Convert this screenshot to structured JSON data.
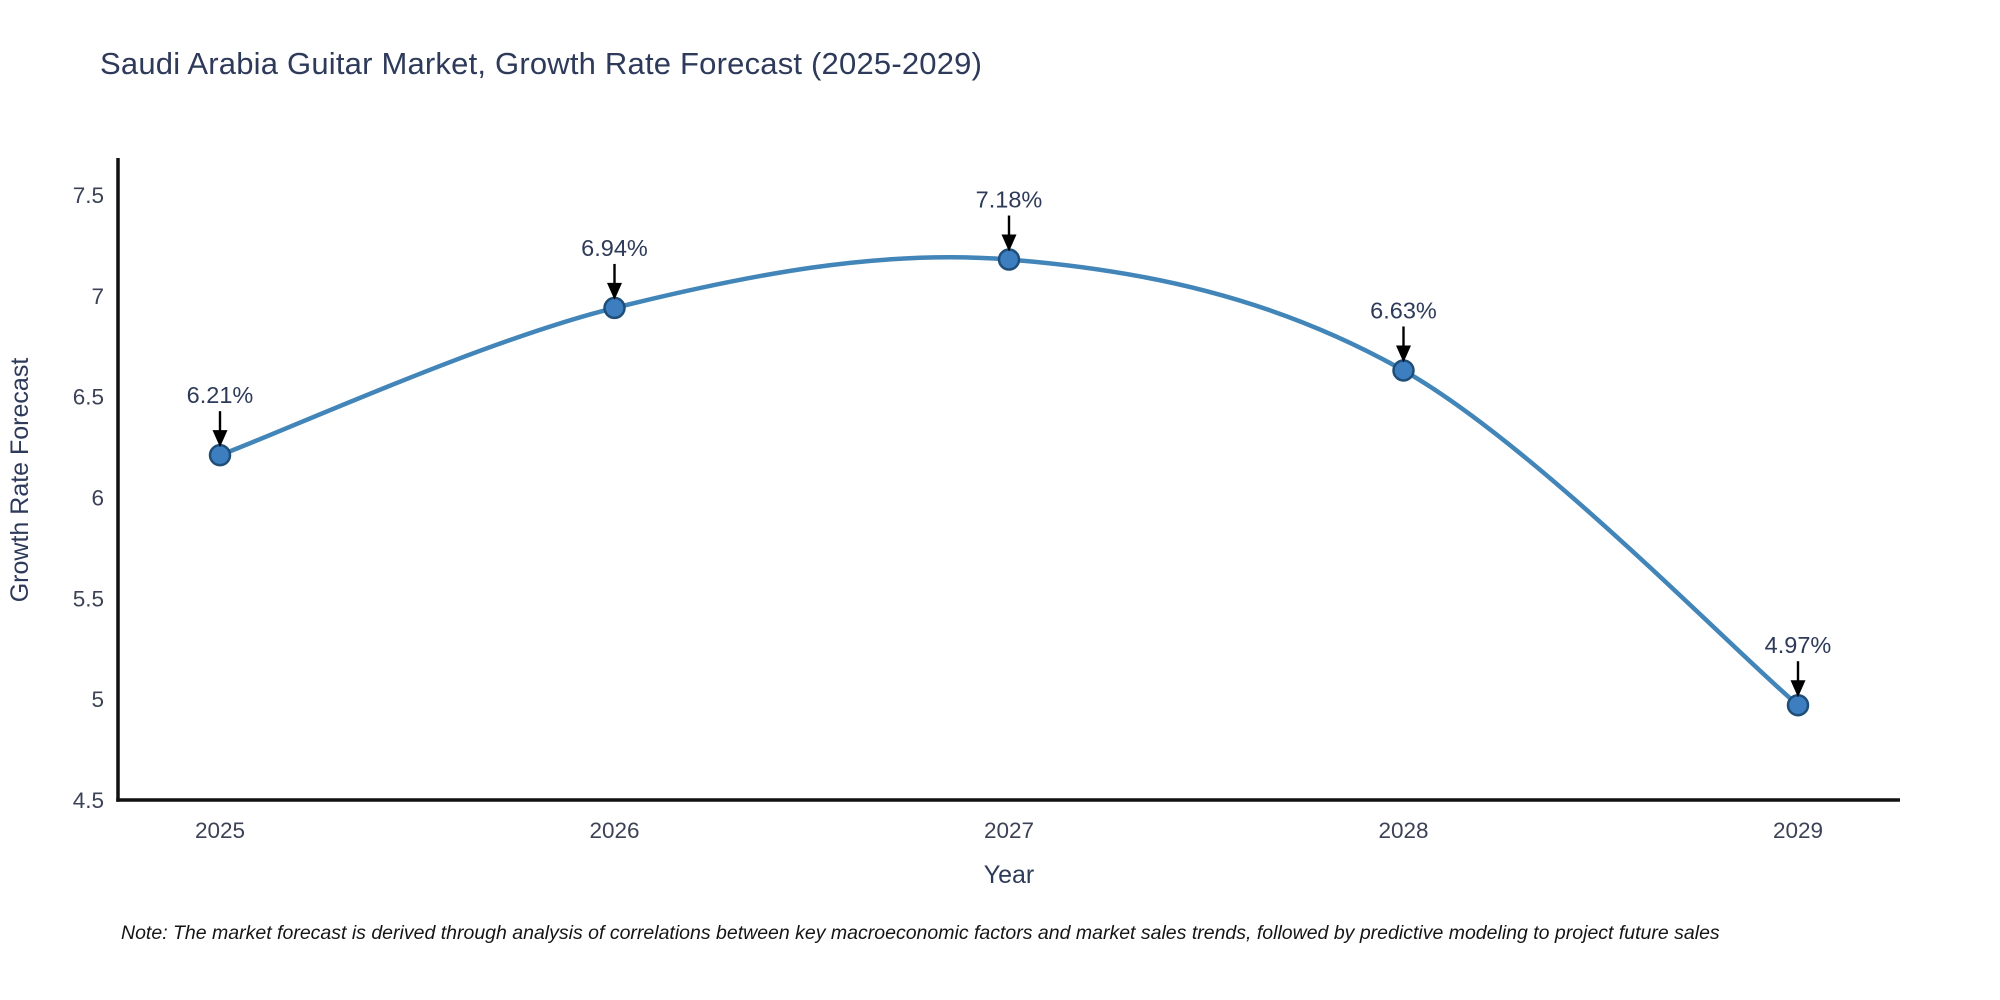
{
  "title": "Saudi Arabia Guitar Market, Growth Rate Forecast (2025-2029)",
  "note": "Note: The market forecast is derived through analysis of correlations between key macroeconomic factors and market sales trends, followed by predictive modeling to project future sales",
  "chart_data": {
    "type": "line",
    "title": "Saudi Arabia Guitar Market, Growth Rate Forecast (2025-2029)",
    "categories": [
      "2025",
      "2026",
      "2027",
      "2028",
      "2029"
    ],
    "series": [
      {
        "name": "Growth Rate Forecast",
        "values": [
          6.21,
          6.94,
          7.18,
          6.63,
          4.97
        ],
        "point_labels": [
          "6.21%",
          "6.94%",
          "7.18%",
          "6.63%",
          "4.97%"
        ]
      }
    ],
    "xlabel": "Year",
    "ylabel": "Growth Rate Forecast",
    "ylim": [
      4.5,
      7.5
    ],
    "yticks": [
      4.5,
      5,
      5.5,
      6,
      6.5,
      7,
      7.5
    ],
    "ytick_labels": [
      "4.5",
      "5",
      "5.5",
      "6",
      "6.5",
      "7",
      "7.5"
    ],
    "line_shape": "spline",
    "grid": false,
    "legend_position": "none",
    "colors": {
      "line": "#4285b8",
      "marker_fill": "#3c7ebf",
      "marker_stroke": "#1f4e79",
      "axis_line": "#111111",
      "chart_text": "#2e3a59",
      "tick_text": "#3b4255",
      "annotation_text": "#2e3a59",
      "annotation_arrow": "#000000",
      "note_text": "#151515",
      "background": "#ffffff"
    }
  }
}
